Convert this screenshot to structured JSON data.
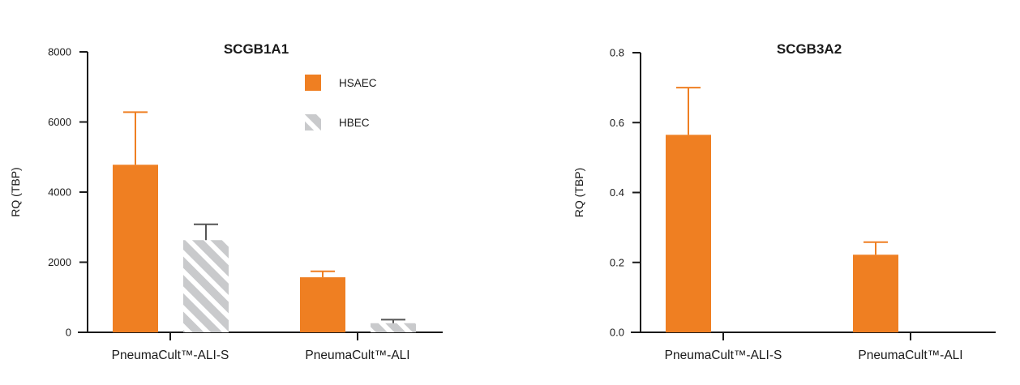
{
  "colors": {
    "hsaec": "#ef7f22",
    "hbec": "#c9cacc",
    "axis": "#1a1a1a"
  },
  "chart_data": [
    {
      "type": "bar",
      "title": "SCGB1A1",
      "xlabel": "",
      "ylabel": "RQ (TBP)",
      "ylim": [
        0,
        8000
      ],
      "yticks": [
        0,
        2000,
        4000,
        6000,
        8000
      ],
      "ytick_labels": [
        "0",
        "2000",
        "4000",
        "6000",
        "8000"
      ],
      "categories": [
        "PneumaCult™-ALI-S",
        "PneumaCult™-ALI"
      ],
      "legend": {
        "placement": "top-right"
      },
      "series": [
        {
          "name": "HSAEC",
          "color": "#ef7f22",
          "pattern": "solid",
          "values": [
            4780,
            1570
          ],
          "error_upper": [
            6280,
            1740
          ]
        },
        {
          "name": "HBEC",
          "color": "#c9cacc",
          "pattern": "hatched",
          "values": [
            2630,
            260
          ],
          "error_upper": [
            3080,
            360
          ]
        }
      ]
    },
    {
      "type": "bar",
      "title": "SCGB3A2",
      "xlabel": "",
      "ylabel": "RQ (TBP)",
      "ylim": [
        0,
        0.8
      ],
      "yticks": [
        0,
        0.2,
        0.4,
        0.6,
        0.8
      ],
      "ytick_labels": [
        "0.0",
        "0.2",
        "0.4",
        "0.6",
        "0.8"
      ],
      "categories": [
        "PneumaCult™-ALI-S",
        "PneumaCult™-ALI"
      ],
      "series": [
        {
          "color": "#ef7f22",
          "pattern": "solid",
          "values": [
            0.565,
            0.222
          ],
          "error_upper": [
            0.7,
            0.258
          ]
        }
      ]
    }
  ]
}
